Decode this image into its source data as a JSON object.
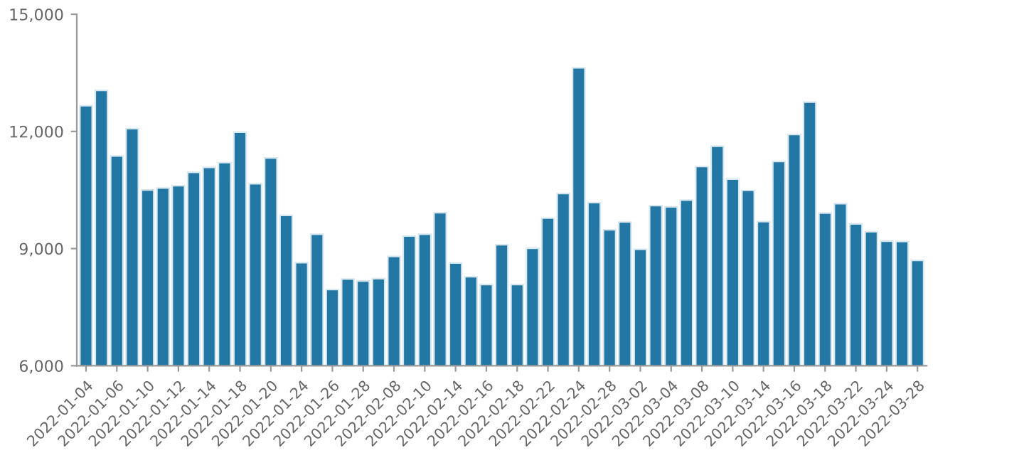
{
  "chart_data": {
    "type": "bar",
    "categories": [
      "2022-01-04",
      null,
      "2022-01-06",
      null,
      "2022-01-10",
      null,
      "2022-01-12",
      null,
      "2022-01-14",
      null,
      "2022-01-18",
      null,
      "2022-01-20",
      null,
      "2022-01-24",
      null,
      "2022-01-26",
      null,
      "2022-01-28",
      null,
      "2022-02-08",
      null,
      "2022-02-10",
      null,
      "2022-02-14",
      null,
      "2022-02-16",
      null,
      "2022-02-18",
      null,
      "2022-02-22",
      null,
      "2022-02-24",
      null,
      "2022-02-28",
      null,
      "2022-03-02",
      null,
      "2022-03-04",
      null,
      "2022-03-08",
      null,
      "2022-03-10",
      null,
      "2022-03-14",
      null,
      "2022-03-16",
      null,
      "2022-03-18",
      null,
      "2022-03-22",
      null,
      "2022-03-24",
      null,
      "2022-03-28"
    ],
    "values": [
      12660,
      13050,
      11370,
      12070,
      10500,
      10550,
      10610,
      10950,
      11080,
      11200,
      11980,
      10660,
      11320,
      9850,
      8640,
      9370,
      7950,
      8220,
      8170,
      8230,
      8800,
      9320,
      9370,
      9920,
      8630,
      8280,
      8080,
      9100,
      8080,
      9010,
      9780,
      10410,
      13630,
      10180,
      9480,
      9680,
      8980,
      10100,
      10070,
      10240,
      11100,
      11620,
      10780,
      10490,
      9690,
      11230,
      11920,
      12750,
      9910,
      10150,
      9630,
      9430,
      9190,
      9180,
      8700
    ],
    "color": "#2377a4",
    "ylim": [
      6000,
      15000
    ],
    "yticks": [
      {
        "value": 6000,
        "label": "6,000"
      },
      {
        "value": 9000,
        "label": "9,000"
      },
      {
        "value": 12000,
        "label": "12,000"
      },
      {
        "value": 15000,
        "label": "15,000"
      }
    ],
    "grid": false
  }
}
